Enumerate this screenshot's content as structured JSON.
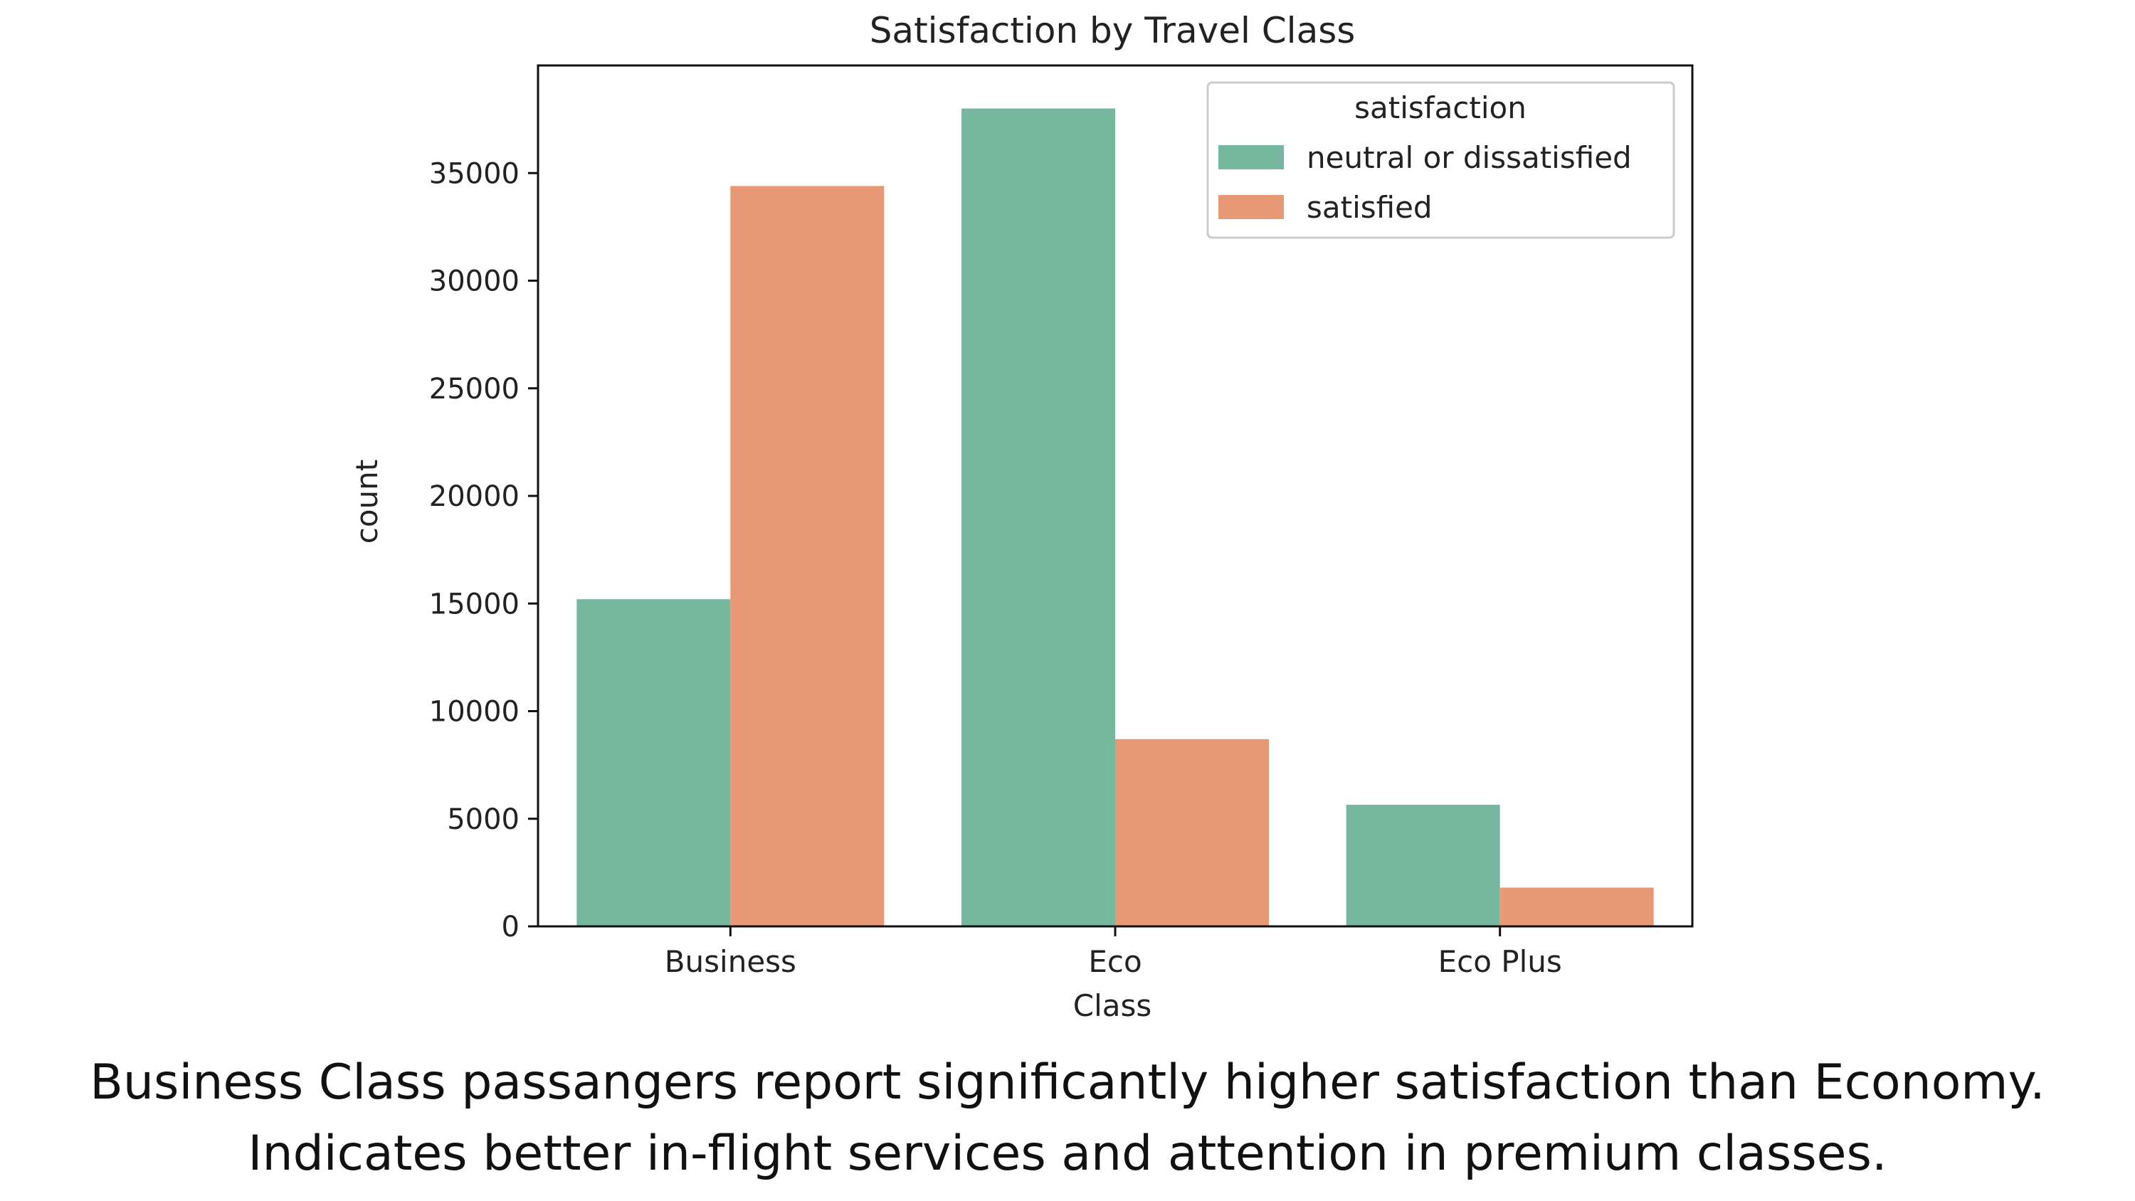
{
  "chart_data": {
    "type": "bar",
    "title": "Satisfaction by Travel Class",
    "xlabel": "Class",
    "ylabel": "count",
    "categories": [
      "Business",
      "Eco",
      "Eco Plus"
    ],
    "series": [
      {
        "name": "neutral or dissatisfied",
        "color": "#76b7a0",
        "values": [
          15200,
          38000,
          5650
        ]
      },
      {
        "name": "satisfied",
        "color": "#e99875",
        "values": [
          34400,
          8700,
          1800
        ]
      }
    ],
    "ylim": [
      0,
      40000
    ],
    "yticks": [
      0,
      5000,
      10000,
      15000,
      20000,
      25000,
      30000,
      35000
    ],
    "grid": false,
    "legend": {
      "title": "satisfaction",
      "position": "top-right"
    }
  },
  "caption": {
    "line1": "Business Class passangers report significantly higher satisfaction than Economy.",
    "line2": "Indicates better in-flight services and attention in premium classes."
  }
}
